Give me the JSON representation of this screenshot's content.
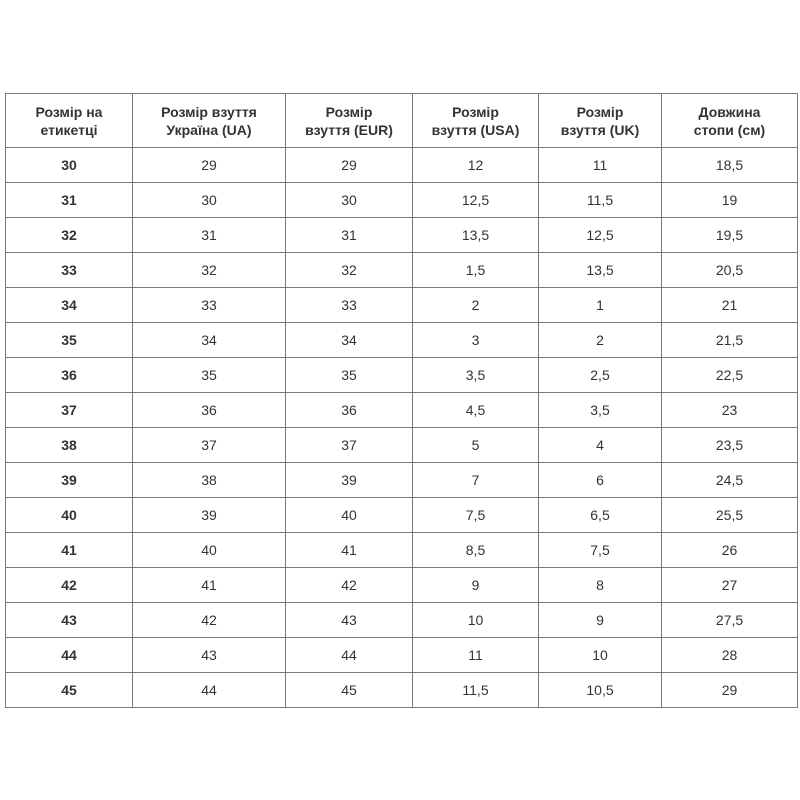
{
  "headers": [
    "Розмір на етикетці",
    "Розмір взуття Україна (UA)",
    "Розмір взуття (EUR)",
    "Розмір взуття (USA)",
    "Розмір взуття (UK)",
    "Довжина стопи (см)"
  ],
  "header_lines": [
    [
      "Розмір на",
      "етикетці"
    ],
    [
      "Розмір взуття",
      "Україна (UA)"
    ],
    [
      "Розмір",
      "взуття (EUR)"
    ],
    [
      "Розмір",
      "взуття (USA)"
    ],
    [
      "Розмір",
      "взуття (UK)"
    ],
    [
      "Довжина",
      "стопи (см)"
    ]
  ],
  "rows": [
    [
      "30",
      "29",
      "29",
      "12",
      "11",
      "18,5"
    ],
    [
      "31",
      "30",
      "30",
      "12,5",
      "11,5",
      "19"
    ],
    [
      "32",
      "31",
      "31",
      "13,5",
      "12,5",
      "19,5"
    ],
    [
      "33",
      "32",
      "32",
      "1,5",
      "13,5",
      "20,5"
    ],
    [
      "34",
      "33",
      "33",
      "2",
      "1",
      "21"
    ],
    [
      "35",
      "34",
      "34",
      "3",
      "2",
      "21,5"
    ],
    [
      "36",
      "35",
      "35",
      "3,5",
      "2,5",
      "22,5"
    ],
    [
      "37",
      "36",
      "36",
      "4,5",
      "3,5",
      "23"
    ],
    [
      "38",
      "37",
      "37",
      "5",
      "4",
      "23,5"
    ],
    [
      "39",
      "38",
      "39",
      "7",
      "6",
      "24,5"
    ],
    [
      "40",
      "39",
      "40",
      "7,5",
      "6,5",
      "25,5"
    ],
    [
      "41",
      "40",
      "41",
      "8,5",
      "7,5",
      "26"
    ],
    [
      "42",
      "41",
      "42",
      "9",
      "8",
      "27"
    ],
    [
      "43",
      "42",
      "43",
      "10",
      "9",
      "27,5"
    ],
    [
      "44",
      "43",
      "44",
      "11",
      "10",
      "28"
    ],
    [
      "45",
      "44",
      "45",
      "11,5",
      "10,5",
      "29"
    ]
  ]
}
